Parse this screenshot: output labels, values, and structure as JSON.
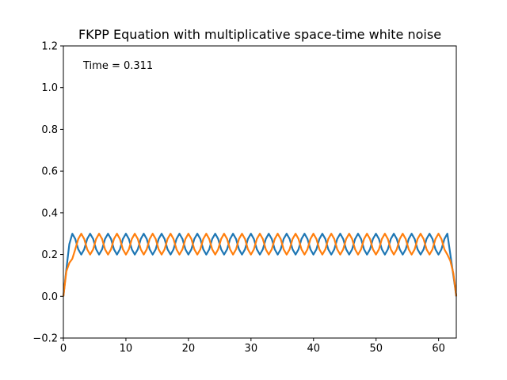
{
  "chart_data": {
    "type": "line",
    "title": "FKPP Equation with multiplicative space-time white noise",
    "annotation": "Time = 0.311",
    "x": [
      0,
      0.48,
      0.95,
      1.43,
      1.9,
      2.38,
      2.86,
      3.33,
      3.81,
      4.28,
      4.76,
      5.24,
      5.71,
      6.19,
      6.66,
      7.14,
      7.62,
      8.09,
      8.57,
      9.04,
      9.52,
      10.0,
      10.47,
      10.95,
      11.42,
      11.9,
      12.38,
      12.85,
      13.33,
      13.8,
      14.28,
      14.76,
      15.23,
      15.71,
      16.18,
      16.66,
      17.14,
      17.61,
      18.09,
      18.56,
      19.04,
      19.52,
      19.99,
      20.47,
      20.94,
      21.42,
      21.9,
      22.37,
      22.85,
      23.32,
      23.8,
      24.28,
      24.75,
      25.23,
      25.7,
      26.18,
      26.66,
      27.13,
      27.61,
      28.08,
      28.56,
      29.04,
      29.51,
      29.99,
      30.46,
      30.94,
      31.42,
      31.89,
      32.37,
      32.84,
      33.32,
      33.8,
      34.27,
      34.75,
      35.22,
      35.7,
      36.18,
      36.65,
      37.13,
      37.6,
      38.08,
      38.56,
      39.03,
      39.51,
      39.98,
      40.46,
      40.94,
      41.41,
      41.89,
      42.36,
      42.84,
      43.32,
      43.79,
      44.27,
      44.74,
      45.22,
      45.7,
      46.17,
      46.65,
      47.12,
      47.6,
      48.08,
      48.55,
      49.03,
      49.5,
      49.98,
      50.46,
      50.93,
      51.41,
      51.88,
      52.36,
      52.84,
      53.31,
      53.79,
      54.26,
      54.74,
      55.22,
      55.69,
      56.17,
      56.64,
      57.12,
      57.6,
      58.07,
      58.55,
      59.02,
      59.5,
      59.98,
      60.45,
      60.93,
      61.4,
      61.88,
      62.36,
      62.83
    ],
    "series": [
      {
        "color": "#1f77b4",
        "values": [
          0,
          0.13,
          0.25,
          0.3,
          0.275,
          0.225,
          0.2,
          0.225,
          0.275,
          0.3,
          0.275,
          0.225,
          0.2,
          0.225,
          0.275,
          0.3,
          0.275,
          0.225,
          0.2,
          0.225,
          0.275,
          0.3,
          0.275,
          0.225,
          0.2,
          0.225,
          0.275,
          0.3,
          0.275,
          0.225,
          0.2,
          0.225,
          0.275,
          0.3,
          0.275,
          0.225,
          0.2,
          0.225,
          0.275,
          0.3,
          0.275,
          0.225,
          0.2,
          0.225,
          0.275,
          0.3,
          0.275,
          0.225,
          0.2,
          0.225,
          0.275,
          0.3,
          0.275,
          0.225,
          0.2,
          0.225,
          0.275,
          0.3,
          0.275,
          0.225,
          0.2,
          0.225,
          0.275,
          0.3,
          0.275,
          0.225,
          0.2,
          0.225,
          0.275,
          0.3,
          0.275,
          0.225,
          0.2,
          0.225,
          0.275,
          0.3,
          0.275,
          0.225,
          0.2,
          0.225,
          0.275,
          0.3,
          0.275,
          0.225,
          0.2,
          0.225,
          0.275,
          0.3,
          0.275,
          0.225,
          0.2,
          0.225,
          0.275,
          0.3,
          0.275,
          0.225,
          0.2,
          0.225,
          0.275,
          0.3,
          0.275,
          0.225,
          0.2,
          0.225,
          0.275,
          0.3,
          0.275,
          0.225,
          0.2,
          0.225,
          0.275,
          0.3,
          0.275,
          0.225,
          0.2,
          0.225,
          0.275,
          0.3,
          0.275,
          0.225,
          0.2,
          0.225,
          0.275,
          0.3,
          0.275,
          0.225,
          0.2,
          0.225,
          0.275,
          0.3,
          0.2,
          0.1,
          0
        ]
      },
      {
        "color": "#ff7f0e",
        "values": [
          0,
          0.12,
          0.16,
          0.18,
          0.225,
          0.275,
          0.3,
          0.275,
          0.225,
          0.2,
          0.225,
          0.275,
          0.3,
          0.275,
          0.225,
          0.2,
          0.225,
          0.275,
          0.3,
          0.275,
          0.225,
          0.2,
          0.225,
          0.275,
          0.3,
          0.275,
          0.225,
          0.2,
          0.225,
          0.275,
          0.3,
          0.275,
          0.225,
          0.2,
          0.225,
          0.275,
          0.3,
          0.275,
          0.225,
          0.2,
          0.225,
          0.275,
          0.3,
          0.275,
          0.225,
          0.2,
          0.225,
          0.275,
          0.3,
          0.275,
          0.225,
          0.2,
          0.225,
          0.275,
          0.3,
          0.275,
          0.225,
          0.2,
          0.225,
          0.275,
          0.3,
          0.275,
          0.225,
          0.2,
          0.225,
          0.275,
          0.3,
          0.275,
          0.225,
          0.2,
          0.225,
          0.275,
          0.3,
          0.275,
          0.225,
          0.2,
          0.225,
          0.275,
          0.3,
          0.275,
          0.225,
          0.2,
          0.225,
          0.275,
          0.3,
          0.275,
          0.225,
          0.2,
          0.225,
          0.275,
          0.3,
          0.275,
          0.225,
          0.2,
          0.225,
          0.275,
          0.3,
          0.275,
          0.225,
          0.2,
          0.225,
          0.275,
          0.3,
          0.275,
          0.225,
          0.2,
          0.225,
          0.275,
          0.3,
          0.275,
          0.225,
          0.2,
          0.225,
          0.275,
          0.3,
          0.275,
          0.225,
          0.2,
          0.225,
          0.275,
          0.3,
          0.275,
          0.225,
          0.2,
          0.225,
          0.275,
          0.3,
          0.275,
          0.225,
          0.2,
          0.17,
          0.11,
          0
        ]
      }
    ],
    "xlim": [
      0,
      62.83
    ],
    "ylim": [
      -0.2,
      1.2
    ],
    "xticks": [
      0,
      10,
      20,
      30,
      40,
      50,
      60
    ],
    "yticks": [
      {
        "value": -0.2,
        "label": "−0.2"
      },
      {
        "value": 0,
        "label": "0.0"
      },
      0.2,
      0.4,
      0.6,
      0.8,
      {
        "value": 1,
        "label": "1.0"
      },
      1.2
    ]
  }
}
